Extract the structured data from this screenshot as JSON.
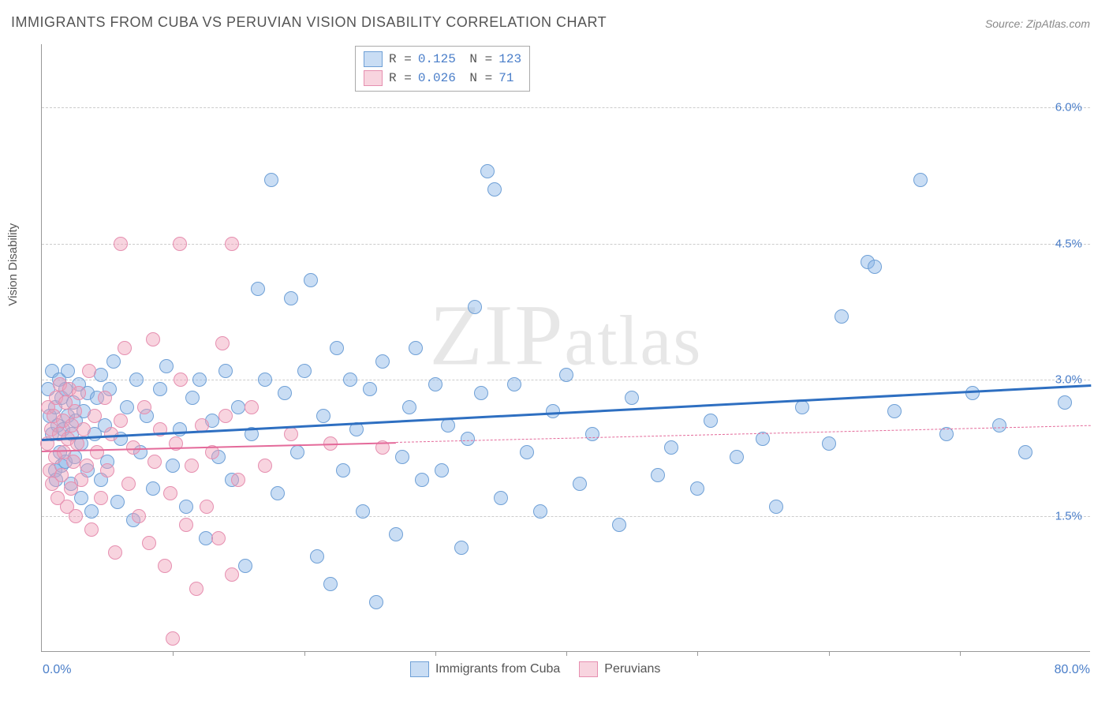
{
  "title": "IMMIGRANTS FROM CUBA VS PERUVIAN VISION DISABILITY CORRELATION CHART",
  "source": "Source: ZipAtlas.com",
  "watermark": "ZIPatlas",
  "ylabel": "Vision Disability",
  "chart": {
    "type": "scatter",
    "xlim": [
      0,
      80
    ],
    "ylim": [
      0,
      6.7
    ],
    "x_ticks": [
      0,
      10,
      20,
      30,
      40,
      50,
      60,
      70,
      80
    ],
    "x_axis_labels": {
      "min": "0.0%",
      "max": "80.0%"
    },
    "y_grid": [
      {
        "val": 1.5,
        "label": "1.5%"
      },
      {
        "val": 3.0,
        "label": "3.0%"
      },
      {
        "val": 4.5,
        "label": "4.5%"
      },
      {
        "val": 6.0,
        "label": "6.0%"
      }
    ],
    "marker_radius": 9,
    "background_color": "#ffffff",
    "grid_color": "#cccccc",
    "series": [
      {
        "name": "Immigrants from Cuba",
        "color_fill": "rgba(135,180,230,0.45)",
        "color_stroke": "#6fa0d6",
        "trend_color": "#2e6fc1",
        "trend_width": 3,
        "trend": {
          "x1": 0,
          "y1": 2.35,
          "x2": 80,
          "y2": 2.95,
          "solid_until_x": 80
        },
        "R": "0.125",
        "N": "123",
        "points": [
          [
            0.5,
            2.9
          ],
          [
            0.6,
            2.6
          ],
          [
            0.8,
            3.1
          ],
          [
            0.8,
            2.4
          ],
          [
            1.0,
            2.0
          ],
          [
            1.0,
            2.7
          ],
          [
            1.1,
            1.9
          ],
          [
            1.2,
            2.5
          ],
          [
            1.3,
            3.0
          ],
          [
            1.4,
            2.2
          ],
          [
            1.5,
            2.8
          ],
          [
            1.5,
            2.05
          ],
          [
            1.6,
            2.45
          ],
          [
            1.8,
            2.9
          ],
          [
            1.8,
            2.1
          ],
          [
            2.0,
            2.6
          ],
          [
            2.0,
            3.1
          ],
          [
            2.2,
            1.85
          ],
          [
            2.3,
            2.4
          ],
          [
            2.4,
            2.75
          ],
          [
            2.5,
            2.15
          ],
          [
            2.6,
            2.55
          ],
          [
            2.8,
            2.95
          ],
          [
            3.0,
            1.7
          ],
          [
            3.0,
            2.3
          ],
          [
            3.2,
            2.65
          ],
          [
            3.5,
            2.0
          ],
          [
            3.5,
            2.85
          ],
          [
            3.8,
            1.55
          ],
          [
            4.0,
            2.4
          ],
          [
            4.2,
            2.8
          ],
          [
            4.5,
            3.05
          ],
          [
            4.5,
            1.9
          ],
          [
            4.8,
            2.5
          ],
          [
            5.0,
            2.1
          ],
          [
            5.2,
            2.9
          ],
          [
            5.5,
            3.2
          ],
          [
            5.8,
            1.65
          ],
          [
            6.0,
            2.35
          ],
          [
            6.5,
            2.7
          ],
          [
            7.0,
            1.45
          ],
          [
            7.2,
            3.0
          ],
          [
            7.5,
            2.2
          ],
          [
            8.0,
            2.6
          ],
          [
            8.5,
            1.8
          ],
          [
            9.0,
            2.9
          ],
          [
            9.5,
            3.15
          ],
          [
            10.0,
            2.05
          ],
          [
            10.5,
            2.45
          ],
          [
            11.0,
            1.6
          ],
          [
            11.5,
            2.8
          ],
          [
            12.0,
            3.0
          ],
          [
            12.5,
            1.25
          ],
          [
            13.0,
            2.55
          ],
          [
            13.5,
            2.15
          ],
          [
            14.0,
            3.1
          ],
          [
            14.5,
            1.9
          ],
          [
            15.0,
            2.7
          ],
          [
            15.5,
            0.95
          ],
          [
            16.0,
            2.4
          ],
          [
            16.5,
            4.0
          ],
          [
            17.0,
            3.0
          ],
          [
            17.5,
            5.2
          ],
          [
            18.0,
            1.75
          ],
          [
            18.5,
            2.85
          ],
          [
            19.0,
            3.9
          ],
          [
            19.5,
            2.2
          ],
          [
            20.0,
            3.1
          ],
          [
            20.5,
            4.1
          ],
          [
            21.0,
            1.05
          ],
          [
            21.5,
            2.6
          ],
          [
            22.0,
            0.75
          ],
          [
            22.5,
            3.35
          ],
          [
            23.0,
            2.0
          ],
          [
            23.5,
            3.0
          ],
          [
            24.0,
            2.45
          ],
          [
            24.5,
            1.55
          ],
          [
            25.0,
            2.9
          ],
          [
            25.5,
            0.55
          ],
          [
            26.0,
            3.2
          ],
          [
            27.0,
            1.3
          ],
          [
            27.5,
            2.15
          ],
          [
            28.0,
            2.7
          ],
          [
            28.5,
            3.35
          ],
          [
            29.0,
            1.9
          ],
          [
            30.0,
            2.95
          ],
          [
            30.5,
            2.0
          ],
          [
            31.0,
            2.5
          ],
          [
            32.0,
            1.15
          ],
          [
            32.5,
            2.35
          ],
          [
            33.0,
            3.8
          ],
          [
            33.5,
            2.85
          ],
          [
            34.0,
            5.3
          ],
          [
            34.5,
            5.1
          ],
          [
            35.0,
            1.7
          ],
          [
            36.0,
            2.95
          ],
          [
            37.0,
            2.2
          ],
          [
            38.0,
            1.55
          ],
          [
            39.0,
            2.65
          ],
          [
            40.0,
            3.05
          ],
          [
            41.0,
            1.85
          ],
          [
            42.0,
            2.4
          ],
          [
            44.0,
            1.4
          ],
          [
            45.0,
            2.8
          ],
          [
            47.0,
            1.95
          ],
          [
            48.0,
            2.25
          ],
          [
            50.0,
            1.8
          ],
          [
            51.0,
            2.55
          ],
          [
            53.0,
            2.15
          ],
          [
            55.0,
            2.35
          ],
          [
            56.0,
            1.6
          ],
          [
            58.0,
            2.7
          ],
          [
            60.0,
            2.3
          ],
          [
            61.0,
            3.7
          ],
          [
            63.0,
            4.3
          ],
          [
            63.5,
            4.25
          ],
          [
            65.0,
            2.65
          ],
          [
            67.0,
            5.2
          ],
          [
            69.0,
            2.4
          ],
          [
            71.0,
            2.85
          ],
          [
            73.0,
            2.5
          ],
          [
            75.0,
            2.2
          ],
          [
            78.0,
            2.75
          ]
        ]
      },
      {
        "name": "Peruvians",
        "color_fill": "rgba(240,160,185,0.45)",
        "color_stroke": "#e68fb0",
        "trend_color": "#e46a9a",
        "trend_width": 2,
        "trend": {
          "x1": 0,
          "y1": 2.22,
          "x2": 80,
          "y2": 2.5,
          "solid_until_x": 27
        },
        "R": "0.026",
        "N": "71",
        "points": [
          [
            0.4,
            2.3
          ],
          [
            0.5,
            2.7
          ],
          [
            0.6,
            2.0
          ],
          [
            0.7,
            2.45
          ],
          [
            0.8,
            1.85
          ],
          [
            0.9,
            2.6
          ],
          [
            1.0,
            2.15
          ],
          [
            1.1,
            2.8
          ],
          [
            1.2,
            1.7
          ],
          [
            1.3,
            2.4
          ],
          [
            1.4,
            2.95
          ],
          [
            1.5,
            1.95
          ],
          [
            1.6,
            2.55
          ],
          [
            1.7,
            2.2
          ],
          [
            1.8,
            2.75
          ],
          [
            1.9,
            1.6
          ],
          [
            2.0,
            2.35
          ],
          [
            2.1,
            2.9
          ],
          [
            2.2,
            1.8
          ],
          [
            2.3,
            2.5
          ],
          [
            2.4,
            2.1
          ],
          [
            2.5,
            2.65
          ],
          [
            2.6,
            1.5
          ],
          [
            2.7,
            2.3
          ],
          [
            2.8,
            2.85
          ],
          [
            3.0,
            1.9
          ],
          [
            3.2,
            2.45
          ],
          [
            3.4,
            2.05
          ],
          [
            3.6,
            3.1
          ],
          [
            3.8,
            1.35
          ],
          [
            4.0,
            2.6
          ],
          [
            4.2,
            2.2
          ],
          [
            4.5,
            1.7
          ],
          [
            4.8,
            2.8
          ],
          [
            5.0,
            2.0
          ],
          [
            5.3,
            2.4
          ],
          [
            5.6,
            1.1
          ],
          [
            6.0,
            2.55
          ],
          [
            6.3,
            3.35
          ],
          [
            6.6,
            1.85
          ],
          [
            7.0,
            2.25
          ],
          [
            7.4,
            1.5
          ],
          [
            7.8,
            2.7
          ],
          [
            8.2,
            1.2
          ],
          [
            8.6,
            2.1
          ],
          [
            9.0,
            2.45
          ],
          [
            9.4,
            0.95
          ],
          [
            9.8,
            1.75
          ],
          [
            10.2,
            2.3
          ],
          [
            10.6,
            3.0
          ],
          [
            11.0,
            1.4
          ],
          [
            11.4,
            2.05
          ],
          [
            11.8,
            0.7
          ],
          [
            12.2,
            2.5
          ],
          [
            12.6,
            1.6
          ],
          [
            13.0,
            2.2
          ],
          [
            13.5,
            1.25
          ],
          [
            14.0,
            2.6
          ],
          [
            14.5,
            0.85
          ],
          [
            15.0,
            1.9
          ],
          [
            6.0,
            4.5
          ],
          [
            10.5,
            4.5
          ],
          [
            14.5,
            4.5
          ],
          [
            8.5,
            3.45
          ],
          [
            13.8,
            3.4
          ],
          [
            10.0,
            0.15
          ],
          [
            16.0,
            2.7
          ],
          [
            17.0,
            2.05
          ],
          [
            19.0,
            2.4
          ],
          [
            22.0,
            2.3
          ],
          [
            26.0,
            2.25
          ]
        ]
      }
    ]
  }
}
